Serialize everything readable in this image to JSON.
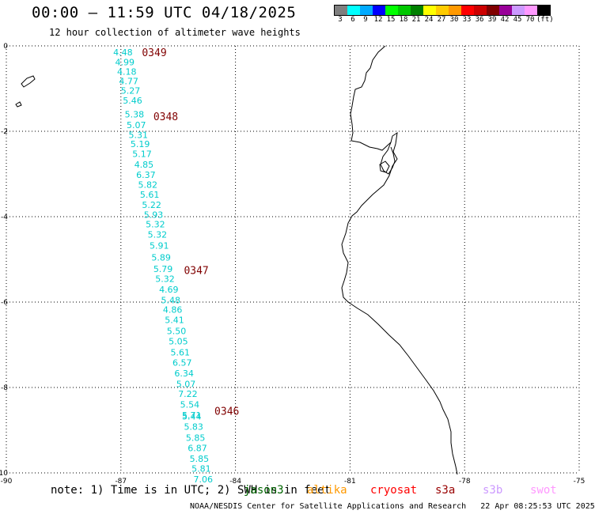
{
  "header": {
    "title": "00:00 – 11:59 UTC 04/18/2025",
    "subtitle": "12 hour collection of altimeter wave heights"
  },
  "legend": {
    "colors": [
      "#7f7f7f",
      "#00ffff",
      "#00aaff",
      "#0000ff",
      "#00ff00",
      "#00c800",
      "#008000",
      "#ffff00",
      "#ffcc00",
      "#ff9900",
      "#ff0000",
      "#cc0000",
      "#800000",
      "#990099",
      "#cc99ff",
      "#ff99ff",
      "#000000"
    ],
    "labels": [
      "3",
      "6",
      "9",
      "12",
      "15",
      "18",
      "21",
      "24",
      "27",
      "30",
      "33",
      "36",
      "39",
      "42",
      "45",
      "70",
      "(ft)"
    ]
  },
  "map": {
    "x_ticks": [
      "-90",
      "-87",
      "-84",
      "-81",
      "-78",
      "-75"
    ],
    "y_ticks": [
      "0",
      "-2",
      "-4",
      "-6",
      "-8",
      "-10"
    ],
    "track_color": "#00cccc",
    "time_color": "#800000",
    "times": [
      {
        "label": "0349",
        "lon": -86.45,
        "lat": -0.15
      },
      {
        "label": "0348",
        "lon": -86.15,
        "lat": -1.65
      },
      {
        "label": "0347",
        "lon": -85.35,
        "lat": -5.25
      },
      {
        "label": "0346",
        "lon": -84.55,
        "lat": -8.55
      }
    ],
    "track": [
      {
        "lon": -87.2,
        "lat": -0.15,
        "v": "4.48"
      },
      {
        "lon": -87.15,
        "lat": -0.38,
        "v": "4.99"
      },
      {
        "lon": -87.1,
        "lat": -0.6,
        "v": "4.18"
      },
      {
        "lon": -87.05,
        "lat": -0.82,
        "v": "4.77"
      },
      {
        "lon": -87.0,
        "lat": -1.05,
        "v": "5.27"
      },
      {
        "lon": -86.95,
        "lat": -1.28,
        "v": "5.46"
      },
      {
        "lon": -86.9,
        "lat": -1.6,
        "v": "5.38"
      },
      {
        "lon": -86.85,
        "lat": -1.85,
        "v": "5.07"
      },
      {
        "lon": -86.8,
        "lat": -2.08,
        "v": "5.31"
      },
      {
        "lon": -86.75,
        "lat": -2.3,
        "v": "5.19"
      },
      {
        "lon": -86.7,
        "lat": -2.53,
        "v": "5.17"
      },
      {
        "lon": -86.65,
        "lat": -2.78,
        "v": "4.85"
      },
      {
        "lon": -86.6,
        "lat": -3.02,
        "v": "6.37"
      },
      {
        "lon": -86.55,
        "lat": -3.25,
        "v": "5.82"
      },
      {
        "lon": -86.5,
        "lat": -3.48,
        "v": "5.61"
      },
      {
        "lon": -86.45,
        "lat": -3.72,
        "v": "5.22"
      },
      {
        "lon": -86.4,
        "lat": -3.95,
        "v": "5.93"
      },
      {
        "lon": -86.35,
        "lat": -4.18,
        "v": "5.32"
      },
      {
        "lon": -86.3,
        "lat": -4.42,
        "v": "5.32"
      },
      {
        "lon": -86.25,
        "lat": -4.68,
        "v": "5.91"
      },
      {
        "lon": -86.2,
        "lat": -4.95,
        "v": "5.89"
      },
      {
        "lon": -86.15,
        "lat": -5.22,
        "v": "5.79"
      },
      {
        "lon": -86.1,
        "lat": -5.45,
        "v": "5.32"
      },
      {
        "lon": -86.0,
        "lat": -5.7,
        "v": "4.69"
      },
      {
        "lon": -85.95,
        "lat": -5.95,
        "v": "5.48"
      },
      {
        "lon": -85.9,
        "lat": -6.18,
        "v": "4.86"
      },
      {
        "lon": -85.85,
        "lat": -6.42,
        "v": "5.41"
      },
      {
        "lon": -85.8,
        "lat": -6.68,
        "v": "5.50"
      },
      {
        "lon": -85.75,
        "lat": -6.92,
        "v": "5.05"
      },
      {
        "lon": -85.7,
        "lat": -7.18,
        "v": "5.61"
      },
      {
        "lon": -85.65,
        "lat": -7.42,
        "v": "6.57"
      },
      {
        "lon": -85.6,
        "lat": -7.67,
        "v": "6.34"
      },
      {
        "lon": -85.55,
        "lat": -7.92,
        "v": "5.07"
      },
      {
        "lon": -85.5,
        "lat": -8.15,
        "v": "7.22"
      },
      {
        "lon": -85.45,
        "lat": -8.4,
        "v": "5.54"
      },
      {
        "lon": -85.4,
        "lat": -8.65,
        "v": "5.71"
      },
      {
        "lon": -85.4,
        "lat": -8.68,
        "v": "5.44"
      },
      {
        "lon": -85.35,
        "lat": -8.92,
        "v": "5.83"
      },
      {
        "lon": -85.3,
        "lat": -9.18,
        "v": "5.85"
      },
      {
        "lon": -85.25,
        "lat": -9.42,
        "v": "6.87"
      },
      {
        "lon": -85.2,
        "lat": -9.67,
        "v": "5.85"
      },
      {
        "lon": -85.15,
        "lat": -9.9,
        "v": "5.81"
      },
      {
        "lon": -85.1,
        "lat": -10.15,
        "v": "7.06"
      }
    ]
  },
  "footer": {
    "note": "note: 1) Time is in UTC; 2) SWH is in feet",
    "satellites": [
      {
        "label": "jason3",
        "color": "#006600"
      },
      {
        "label": "altika",
        "color": "#ff9900"
      },
      {
        "label": "cryosat",
        "color": "#ff0000"
      },
      {
        "label": "s3a",
        "color": "#990000"
      },
      {
        "label": "s3b",
        "color": "#cc99ff"
      },
      {
        "label": "swot",
        "color": "#ff99ff"
      }
    ],
    "credit": "NOAA/NESDIS Center for Satellite Applications and Research",
    "timestamp": "22 Apr 08:25:53 UTC 2025"
  }
}
